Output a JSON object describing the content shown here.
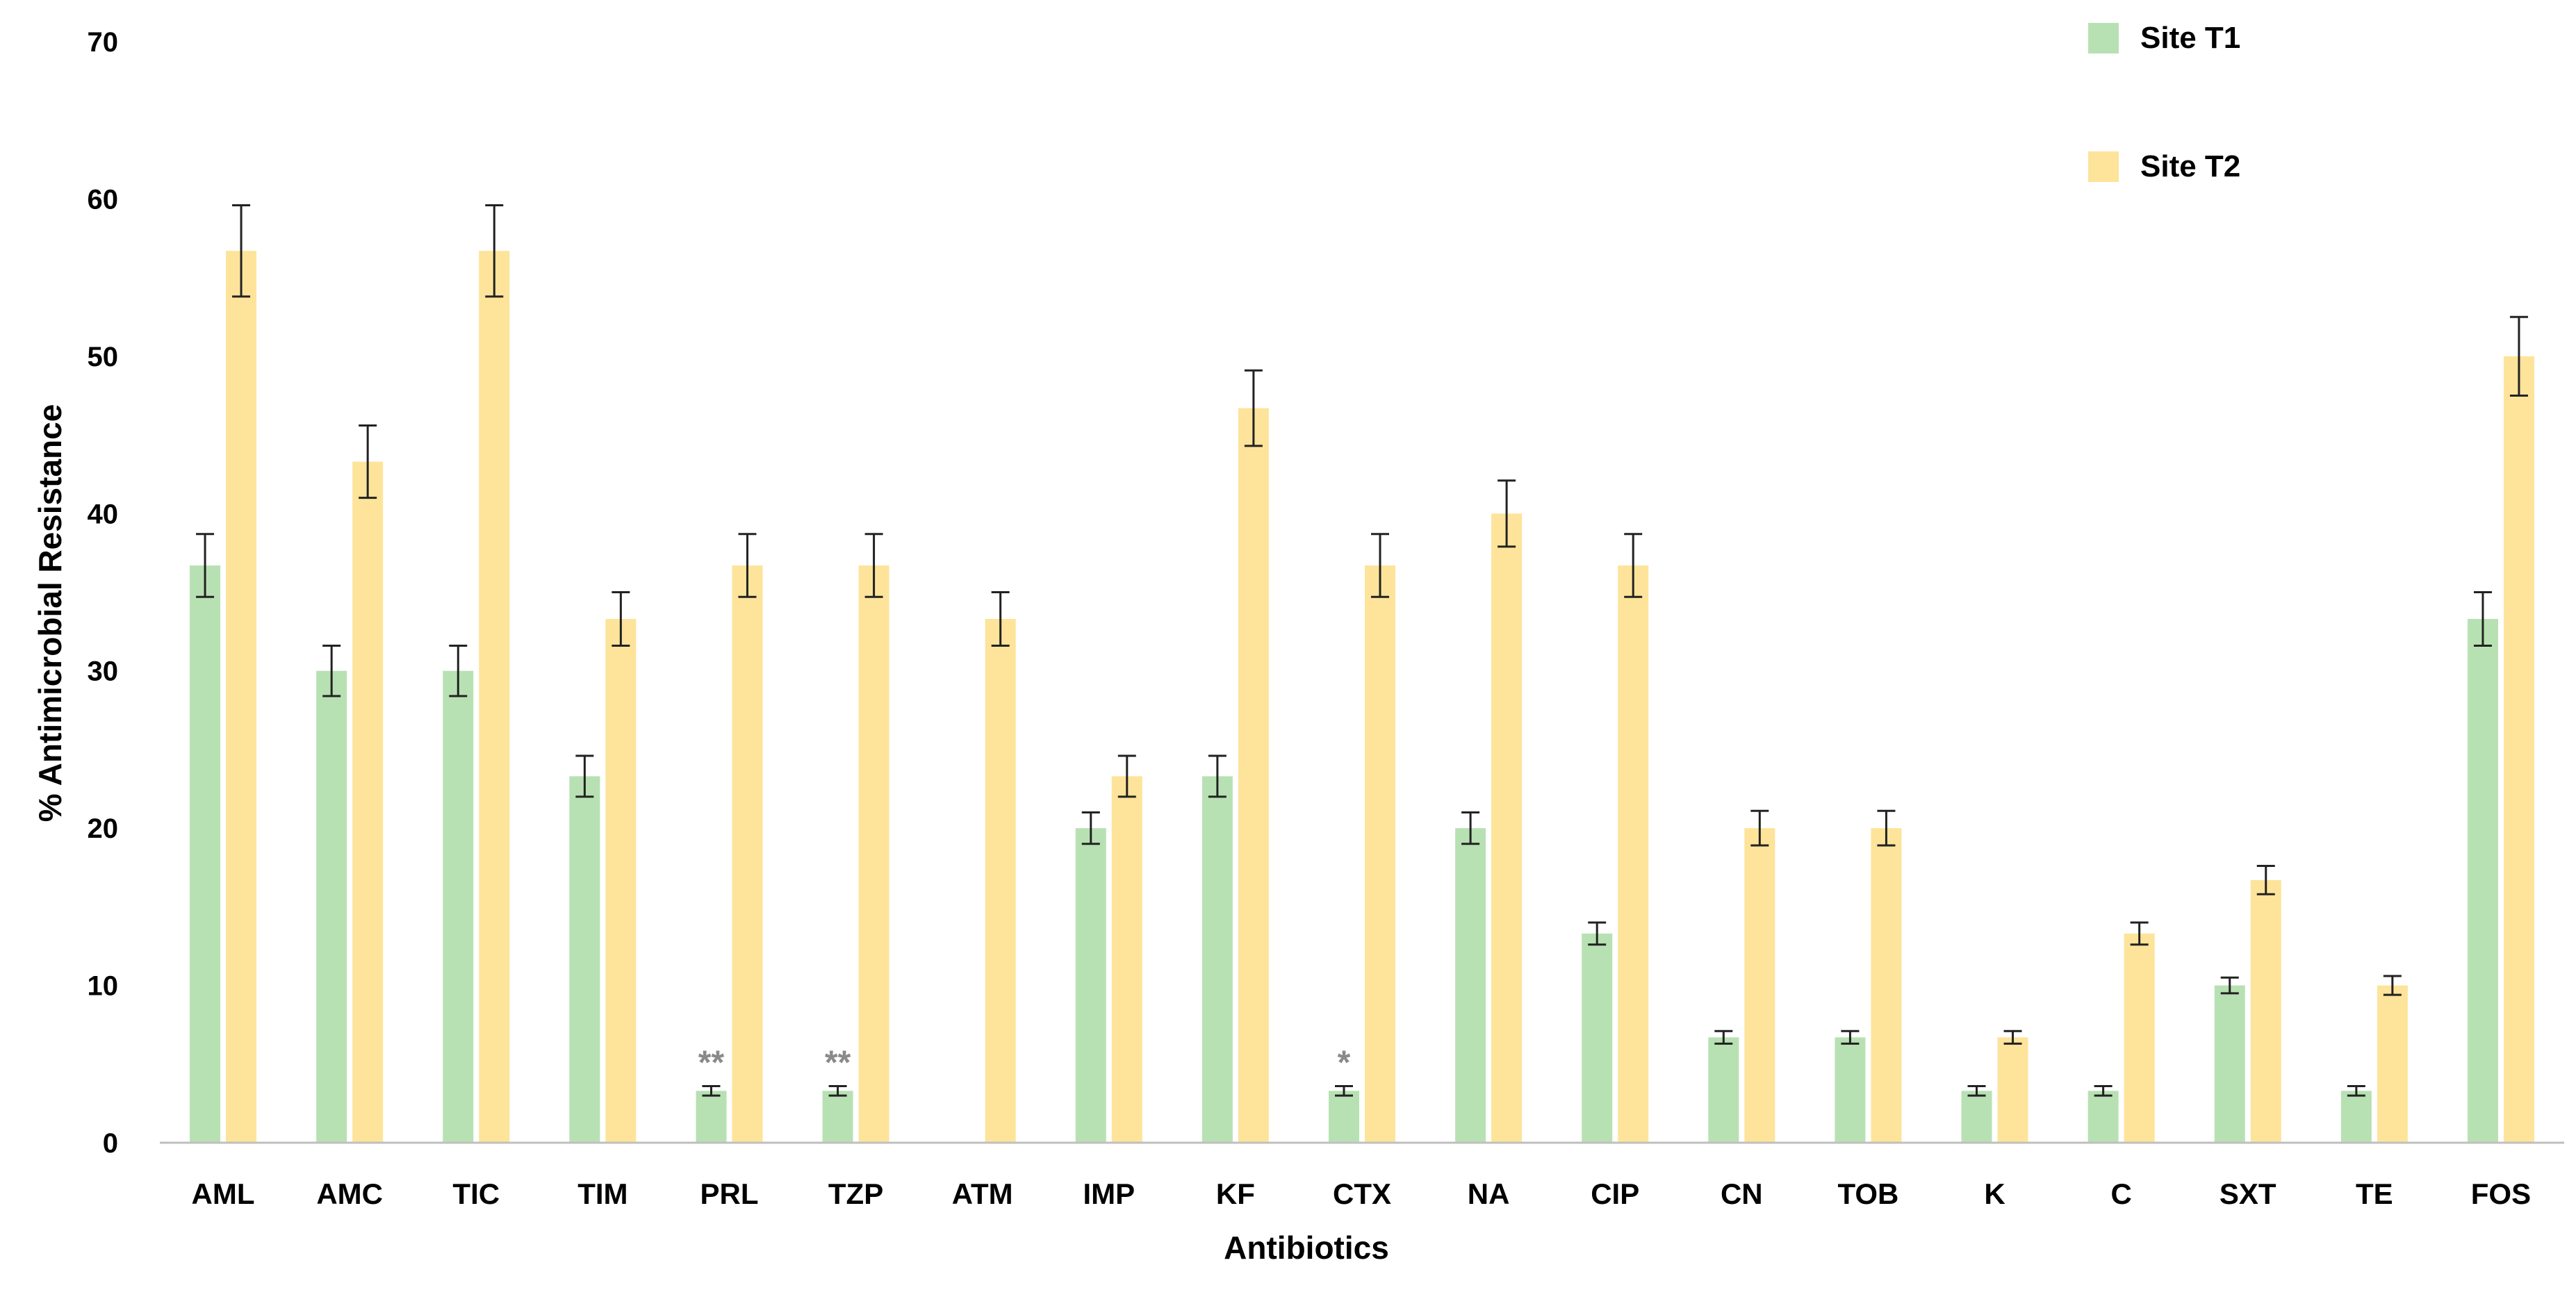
{
  "chart_data": {
    "type": "bar",
    "xlabel": "Antibiotics",
    "ylabel": "% Antimicrobial Resistance",
    "ylim": [
      0,
      70
    ],
    "yticks": [
      0,
      10,
      20,
      30,
      40,
      50,
      60,
      70
    ],
    "grid": false,
    "legend_position": "top-right",
    "categories": [
      "AML",
      "AMC",
      "TIC",
      "TIM",
      "PRL",
      "TZP",
      "ATM",
      "IMP",
      "KF",
      "CTX",
      "NA",
      "CIP",
      "CN",
      "TOB",
      "K",
      "C",
      "SXT",
      "TE",
      "FOS"
    ],
    "series": [
      {
        "name": "Site T1",
        "color": "#b8e1b3",
        "values": [
          36.7,
          30.0,
          30.0,
          23.3,
          3.3,
          3.3,
          0,
          20.0,
          23.3,
          3.3,
          20.0,
          13.3,
          6.7,
          6.7,
          3.3,
          3.3,
          10.0,
          3.3,
          33.3
        ],
        "errors": [
          2.0,
          1.6,
          1.6,
          1.3,
          0.3,
          0.3,
          0,
          1.0,
          1.3,
          0.3,
          1.0,
          0.7,
          0.4,
          0.4,
          0.3,
          0.3,
          0.5,
          0.3,
          1.7
        ]
      },
      {
        "name": "Site T2",
        "color": "#fde49a",
        "values": [
          56.7,
          43.3,
          56.7,
          33.3,
          36.7,
          36.7,
          33.3,
          23.3,
          46.7,
          36.7,
          40.0,
          36.7,
          20.0,
          20.0,
          6.7,
          13.3,
          16.7,
          10.0,
          50.0
        ],
        "errors": [
          2.9,
          2.3,
          2.9,
          1.7,
          2.0,
          2.0,
          1.7,
          1.3,
          2.4,
          2.0,
          2.1,
          2.0,
          1.1,
          1.1,
          0.4,
          0.7,
          0.9,
          0.6,
          2.5
        ]
      }
    ],
    "annotations": [
      {
        "category": "PRL",
        "text": "**"
      },
      {
        "category": "TZP",
        "text": "**"
      },
      {
        "category": "CTX",
        "text": "*"
      }
    ]
  }
}
